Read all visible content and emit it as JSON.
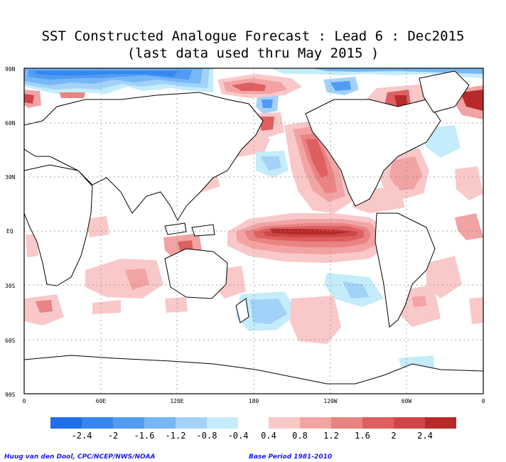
{
  "title": {
    "line1": "SST Constructed Analogue Forecast : Lead 6 : Dec2015",
    "line2": "(last data used thru May 2015 )"
  },
  "lat_ticks": [
    "90N",
    "60N",
    "30N",
    "EQ",
    "30S",
    "60S",
    "90S"
  ],
  "lon_ticks": [
    "0",
    "60E",
    "120E",
    "180",
    "120W",
    "60W",
    "0"
  ],
  "colorbar": {
    "negative": [
      {
        "label": "-2.4",
        "color": "#1f6fe8"
      },
      {
        "label": "-2",
        "color": "#3586ee"
      },
      {
        "label": "-1.6",
        "color": "#4f9cf2"
      },
      {
        "label": "-1.2",
        "color": "#77b7f6"
      },
      {
        "label": "-0.8",
        "color": "#a2d2f8"
      },
      {
        "label": "-0.4",
        "color": "#c4ecfb"
      }
    ],
    "positive": [
      {
        "label": "0.4",
        "color": "#f9c8c8"
      },
      {
        "label": "0.8",
        "color": "#f2a3a3"
      },
      {
        "label": "1.2",
        "color": "#ea8383"
      },
      {
        "label": "1.6",
        "color": "#de5f5f"
      },
      {
        "label": "2",
        "color": "#d04646"
      },
      {
        "label": "2.4",
        "color": "#b62a2a"
      }
    ],
    "last_color": "#b62a2a"
  },
  "footer": {
    "credit": "Huug van den Dool, CPC/NCEP/NWS/NOAA",
    "period": "Base Period 1981-2010"
  }
}
